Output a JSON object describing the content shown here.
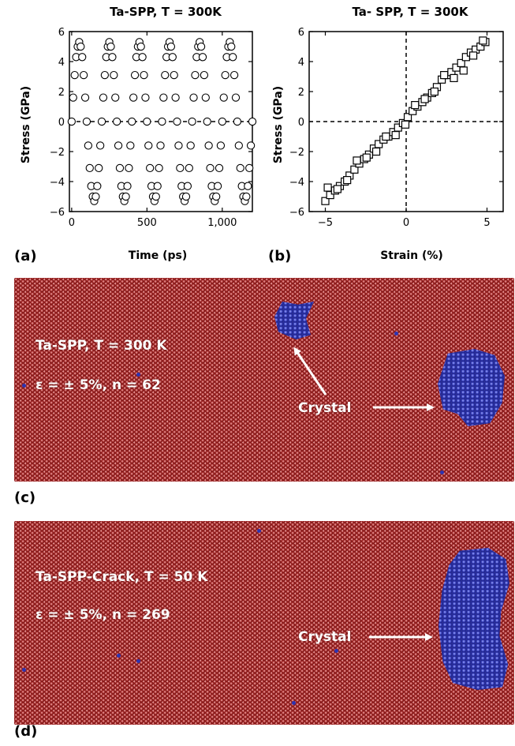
{
  "chart_data": [
    {
      "type": "scatter",
      "title": "Ta-SPP, T = 300K",
      "xlabel": "Time (ps)",
      "ylabel": "Stress (GPa)",
      "xlim": [
        -15,
        1200
      ],
      "ylim": [
        -6,
        6
      ],
      "xticks": [
        0,
        500,
        1000
      ],
      "xtick_labels": [
        "0",
        "500",
        "1,000"
      ],
      "yticks": [
        -6,
        -4,
        -2,
        0,
        2,
        4,
        6
      ],
      "ytick_labels": [
        "−6",
        "−4",
        "−2",
        "0",
        "2",
        "4",
        "6"
      ],
      "marker": "open-circle",
      "reference_line": {
        "y": 0,
        "style": "dashed"
      },
      "series_desc": "oscillating stress, amplitude ~5.3 GPa, period ~200 ps",
      "amplitude": 5.3,
      "period": 200,
      "x": [
        0,
        10,
        20,
        30,
        40,
        50,
        60,
        70,
        80,
        90,
        100,
        110,
        120,
        130,
        140,
        150,
        160,
        170,
        180,
        190,
        200,
        210,
        220,
        230,
        240,
        250,
        260,
        270,
        280,
        290,
        300,
        310,
        320,
        330,
        340,
        350,
        360,
        370,
        380,
        390,
        400,
        410,
        420,
        430,
        440,
        450,
        460,
        470,
        480,
        490,
        500,
        510,
        520,
        530,
        540,
        550,
        560,
        570,
        580,
        590,
        600,
        610,
        620,
        630,
        640,
        650,
        660,
        670,
        680,
        690,
        700,
        710,
        720,
        730,
        740,
        750,
        760,
        770,
        780,
        790,
        800,
        810,
        820,
        830,
        840,
        850,
        860,
        870,
        880,
        890,
        900,
        910,
        920,
        930,
        940,
        950,
        960,
        970,
        980,
        990,
        1000,
        1010,
        1020,
        1030,
        1040,
        1050,
        1060,
        1070,
        1080,
        1090,
        1100,
        1110,
        1120,
        1130,
        1140,
        1150,
        1160,
        1170,
        1180,
        1190,
        1200
      ],
      "y": [
        0,
        1.6,
        3.1,
        4.3,
        5.0,
        5.3,
        5.0,
        4.3,
        3.1,
        1.6,
        0,
        -1.6,
        -3.1,
        -4.3,
        -5.0,
        -5.3,
        -5.0,
        -4.3,
        -3.1,
        -1.6,
        0,
        1.6,
        3.1,
        4.3,
        5.0,
        5.3,
        5.0,
        4.3,
        3.1,
        1.6,
        0,
        -1.6,
        -3.1,
        -4.3,
        -5.0,
        -5.3,
        -5.0,
        -4.3,
        -3.1,
        -1.6,
        0,
        1.6,
        3.1,
        4.3,
        5.0,
        5.3,
        5.0,
        4.3,
        3.1,
        1.6,
        0,
        -1.6,
        -3.1,
        -4.3,
        -5.0,
        -5.3,
        -5.0,
        -4.3,
        -3.1,
        -1.6,
        0,
        1.6,
        3.1,
        4.3,
        5.0,
        5.3,
        5.0,
        4.3,
        3.1,
        1.6,
        0,
        -1.6,
        -3.1,
        -4.3,
        -5.0,
        -5.3,
        -5.0,
        -4.3,
        -3.1,
        -1.6,
        0,
        1.6,
        3.1,
        4.3,
        5.0,
        5.3,
        5.0,
        4.3,
        3.1,
        1.6,
        0,
        -1.6,
        -3.1,
        -4.3,
        -5.0,
        -5.3,
        -5.0,
        -4.3,
        -3.1,
        -1.6,
        0,
        1.6,
        3.1,
        4.3,
        5.0,
        5.3,
        5.0,
        4.3,
        3.1,
        1.6,
        0,
        -1.6,
        -3.1,
        -4.3,
        -5.0,
        -5.3,
        -5.0,
        -4.3,
        -3.1,
        -1.6,
        0
      ]
    },
    {
      "type": "scatter",
      "title": "Ta- SPP, T = 300K",
      "xlabel": "Strain (%)",
      "ylabel": "Stress (GPa)",
      "xlim": [
        -6,
        6
      ],
      "ylim": [
        -6,
        6
      ],
      "xticks": [
        -5,
        0,
        5
      ],
      "xtick_labels": [
        "−5",
        "0",
        "5"
      ],
      "yticks": [
        -6,
        -4,
        -2,
        0,
        2,
        4,
        6
      ],
      "ytick_labels": [
        "−6",
        "−4",
        "−2",
        "0",
        "2",
        "4",
        "6"
      ],
      "marker": "open-square",
      "reference_lines": [
        {
          "y": 0,
          "style": "dashed"
        },
        {
          "x": 0,
          "style": "dashed"
        }
      ],
      "x": [
        -5.0,
        -4.7,
        -4.4,
        -4.1,
        -3.8,
        -3.5,
        -3.2,
        -2.9,
        -2.6,
        -2.3,
        -2.0,
        -1.7,
        -1.4,
        -1.1,
        -0.8,
        -0.5,
        -0.2,
        0.1,
        0.4,
        0.7,
        1.0,
        1.3,
        1.6,
        1.9,
        2.2,
        2.5,
        2.8,
        3.1,
        3.4,
        3.7,
        4.0,
        4.3,
        4.6,
        4.9,
        -4.85,
        -4.25,
        -3.65,
        -3.05,
        -2.45,
        -1.85,
        -1.25,
        -0.65,
        -0.05,
        0.55,
        1.15,
        1.75,
        2.35,
        2.95,
        3.55,
        4.15,
        4.75
      ],
      "y": [
        -5.3,
        -4.9,
        -4.6,
        -4.3,
        -4.0,
        -3.6,
        -3.2,
        -2.8,
        -2.5,
        -2.2,
        -1.8,
        -1.5,
        -1.2,
        -1.0,
        -0.7,
        -0.4,
        -0.1,
        0.3,
        0.7,
        1.0,
        1.3,
        1.6,
        1.9,
        2.3,
        2.8,
        3.1,
        3.3,
        3.6,
        3.9,
        4.3,
        4.6,
        4.8,
        5.0,
        5.3,
        -4.4,
        -4.5,
        -3.9,
        -2.6,
        -2.4,
        -2.0,
        -1.0,
        -0.9,
        -0.2,
        1.1,
        1.5,
        2.0,
        3.1,
        2.9,
        3.4,
        4.4,
        5.4
      ]
    }
  ],
  "panels": {
    "a": "(a)",
    "b": "(b)",
    "c": "(c)",
    "d": "(d)"
  },
  "sim_c": {
    "line1": "Ta-SPP, T = 300 K",
    "line2": "ε = ± 5%, n = 62",
    "crystal_label": "Crystal"
  },
  "sim_d": {
    "line1": "Ta-SPP-Crack, T = 50 K",
    "line2": "ε = ± 5%, n = 269",
    "crystal_label": "Crystal"
  },
  "colors": {
    "amorphous": "#9e2424",
    "crystal": "#2a2f9c",
    "annotation": "#ffffff"
  }
}
